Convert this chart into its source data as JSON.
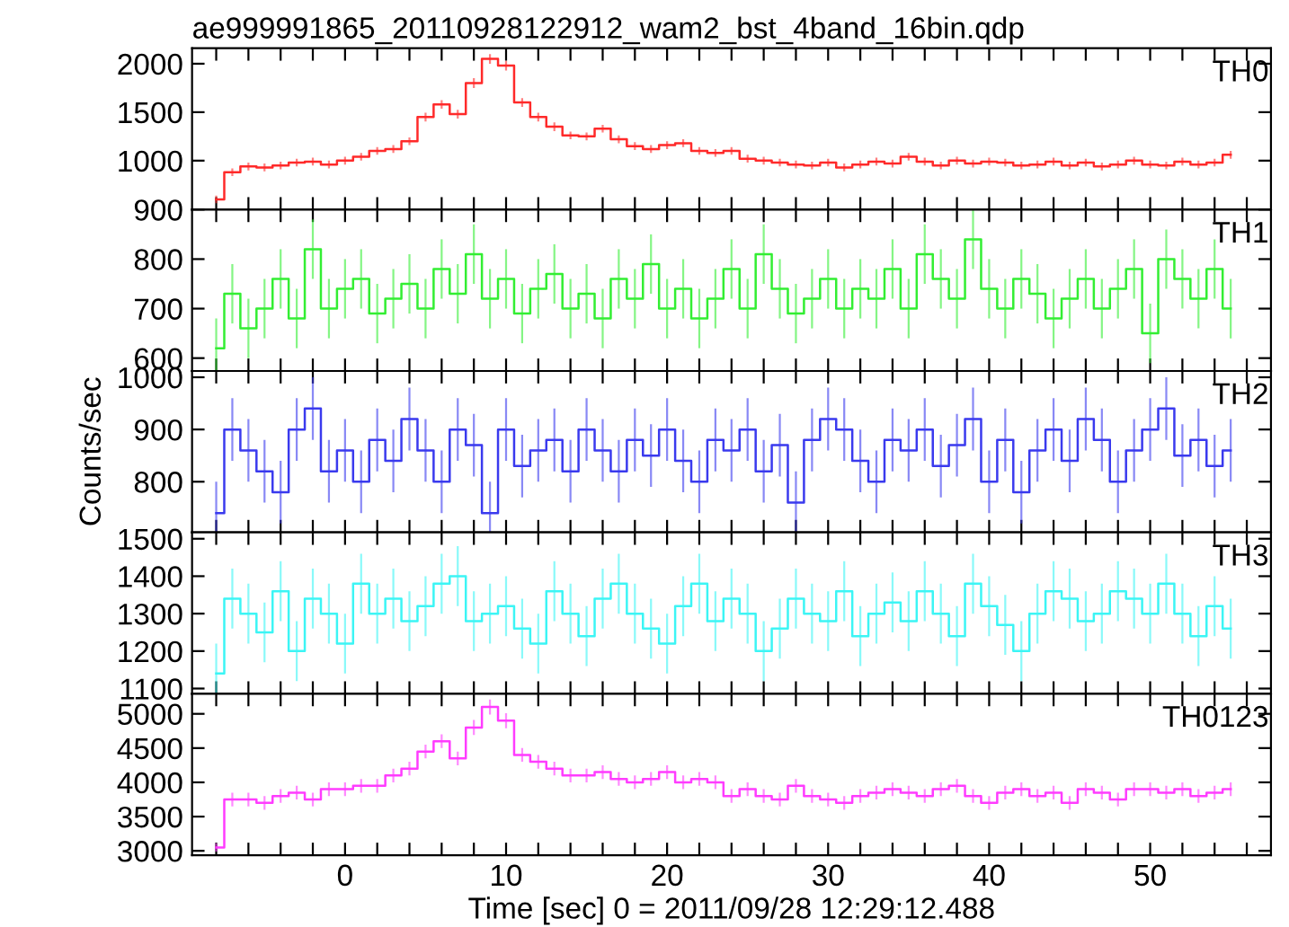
{
  "chart_data": [
    {
      "type": "step",
      "title": "ae999991865_20110928122912_wam2_bst_4band_16bin.qdp",
      "annotations": [
        "TH0"
      ],
      "tick_labels": "y",
      "x": [
        -8,
        -7,
        -6,
        -5,
        -4,
        -3,
        -2,
        -1,
        0,
        1,
        2,
        3,
        4,
        5,
        6,
        7,
        8,
        9,
        10,
        11,
        12,
        13,
        14,
        15,
        16,
        17,
        18,
        19,
        20,
        21,
        22,
        23,
        24,
        25,
        26,
        27,
        28,
        29,
        30,
        31,
        32,
        33,
        34,
        35,
        36,
        37,
        38,
        39,
        40,
        41,
        42,
        43,
        44,
        45,
        46,
        47,
        48,
        49,
        50,
        51,
        52,
        53,
        54,
        55
      ],
      "series": [
        {
          "color": "#ff2a2a",
          "values": [
            600,
            880,
            940,
            930,
            950,
            980,
            990,
            960,
            1000,
            1040,
            1100,
            1120,
            1200,
            1450,
            1580,
            1480,
            1800,
            2050,
            1980,
            1600,
            1450,
            1350,
            1260,
            1250,
            1330,
            1220,
            1150,
            1120,
            1160,
            1180,
            1100,
            1080,
            1100,
            1020,
            1000,
            980,
            960,
            950,
            980,
            930,
            960,
            990,
            970,
            1040,
            990,
            950,
            1000,
            970,
            990,
            980,
            950,
            960,
            990,
            950,
            980,
            940,
            960,
            1000,
            960,
            950,
            990,
            960,
            980,
            1060
          ],
          "errors": [
            40,
            40,
            40,
            40,
            40,
            40,
            40,
            40,
            40,
            40,
            40,
            40,
            40,
            45,
            45,
            45,
            50,
            50,
            50,
            45,
            45,
            45,
            40,
            40,
            40,
            40,
            40,
            40,
            40,
            40,
            40,
            40,
            40,
            40,
            40,
            40,
            40,
            40,
            40,
            40,
            40,
            40,
            40,
            40,
            40,
            40,
            40,
            40,
            40,
            40,
            40,
            40,
            40,
            40,
            40,
            40,
            40,
            40,
            40,
            40,
            40,
            40,
            40,
            40
          ]
        }
      ],
      "ylim": [
        495,
        2160
      ],
      "yticks": [
        1000,
        1500,
        2000
      ],
      "xlim": [
        -9.5,
        57.5
      ],
      "xticks": [
        {
          "value": -8,
          "label": null
        },
        {
          "value": -6,
          "label": null
        },
        {
          "value": -4,
          "label": null
        },
        {
          "value": -2,
          "label": null
        },
        0,
        {
          "value": 2,
          "label": null
        },
        {
          "value": 4,
          "label": null
        },
        {
          "value": 6,
          "label": null
        },
        {
          "value": 8,
          "label": null
        },
        10,
        {
          "value": 12,
          "label": null
        },
        {
          "value": 14,
          "label": null
        },
        {
          "value": 16,
          "label": null
        },
        {
          "value": 18,
          "label": null
        },
        20,
        {
          "value": 22,
          "label": null
        },
        {
          "value": 24,
          "label": null
        },
        {
          "value": 26,
          "label": null
        },
        {
          "value": 28,
          "label": null
        },
        30,
        {
          "value": 32,
          "label": null
        },
        {
          "value": 34,
          "label": null
        },
        {
          "value": 36,
          "label": null
        },
        {
          "value": 38,
          "label": null
        },
        40,
        {
          "value": 42,
          "label": null
        },
        {
          "value": 44,
          "label": null
        },
        {
          "value": 46,
          "label": null
        },
        {
          "value": 48,
          "label": null
        },
        50,
        {
          "value": 52,
          "label": null
        },
        {
          "value": 54,
          "label": null
        },
        {
          "value": 56,
          "label": null
        }
      ]
    },
    {
      "type": "step",
      "annotations": [
        "TH1"
      ],
      "tick_labels": "y",
      "x": [
        -8,
        -7,
        -6,
        -5,
        -4,
        -3,
        -2,
        -1,
        0,
        1,
        2,
        3,
        4,
        5,
        6,
        7,
        8,
        9,
        10,
        11,
        12,
        13,
        14,
        15,
        16,
        17,
        18,
        19,
        20,
        21,
        22,
        23,
        24,
        25,
        26,
        27,
        28,
        29,
        30,
        31,
        32,
        33,
        34,
        35,
        36,
        37,
        38,
        39,
        40,
        41,
        42,
        43,
        44,
        45,
        46,
        47,
        48,
        49,
        50,
        51,
        52,
        53,
        54,
        55
      ],
      "series": [
        {
          "color": "#33ee33",
          "values": [
            620,
            730,
            660,
            700,
            760,
            680,
            820,
            700,
            740,
            760,
            690,
            720,
            750,
            700,
            780,
            730,
            810,
            720,
            760,
            690,
            740,
            770,
            700,
            730,
            680,
            760,
            720,
            790,
            700,
            740,
            680,
            720,
            780,
            700,
            810,
            740,
            690,
            720,
            760,
            700,
            740,
            720,
            780,
            700,
            810,
            760,
            720,
            840,
            740,
            700,
            760,
            730,
            680,
            720,
            760,
            700,
            740,
            780,
            650,
            800,
            760,
            720,
            780,
            700
          ],
          "errors": [
            60,
            60,
            60,
            60,
            60,
            60,
            60,
            60,
            60,
            60,
            60,
            60,
            60,
            60,
            60,
            60,
            60,
            60,
            60,
            60,
            60,
            60,
            60,
            60,
            60,
            60,
            60,
            60,
            60,
            60,
            60,
            60,
            60,
            60,
            60,
            60,
            60,
            60,
            60,
            60,
            60,
            60,
            60,
            60,
            60,
            60,
            60,
            60,
            60,
            60,
            60,
            60,
            60,
            60,
            60,
            60,
            60,
            60,
            60,
            60,
            60,
            60,
            60,
            60
          ]
        }
      ],
      "ylim": [
        574,
        900
      ],
      "yticks": [
        600,
        700,
        800,
        900
      ],
      "xlim": [
        -9.5,
        57.5
      ],
      "xticks": [
        {
          "value": -8,
          "label": null
        },
        {
          "value": -6,
          "label": null
        },
        {
          "value": -4,
          "label": null
        },
        {
          "value": -2,
          "label": null
        },
        0,
        {
          "value": 2,
          "label": null
        },
        {
          "value": 4,
          "label": null
        },
        {
          "value": 6,
          "label": null
        },
        {
          "value": 8,
          "label": null
        },
        10,
        {
          "value": 12,
          "label": null
        },
        {
          "value": 14,
          "label": null
        },
        {
          "value": 16,
          "label": null
        },
        {
          "value": 18,
          "label": null
        },
        20,
        {
          "value": 22,
          "label": null
        },
        {
          "value": 24,
          "label": null
        },
        {
          "value": 26,
          "label": null
        },
        {
          "value": 28,
          "label": null
        },
        30,
        {
          "value": 32,
          "label": null
        },
        {
          "value": 34,
          "label": null
        },
        {
          "value": 36,
          "label": null
        },
        {
          "value": 38,
          "label": null
        },
        40,
        {
          "value": 42,
          "label": null
        },
        {
          "value": 44,
          "label": null
        },
        {
          "value": 46,
          "label": null
        },
        {
          "value": 48,
          "label": null
        },
        50,
        {
          "value": 52,
          "label": null
        },
        {
          "value": 54,
          "label": null
        },
        {
          "value": 56,
          "label": null
        }
      ]
    },
    {
      "type": "step",
      "annotations": [
        "TH2"
      ],
      "tick_labels": "y",
      "ylabel": "Counts/sec",
      "x": [
        -8,
        -7,
        -6,
        -5,
        -4,
        -3,
        -2,
        -1,
        0,
        1,
        2,
        3,
        4,
        5,
        6,
        7,
        8,
        9,
        10,
        11,
        12,
        13,
        14,
        15,
        16,
        17,
        18,
        19,
        20,
        21,
        22,
        23,
        24,
        25,
        26,
        27,
        28,
        29,
        30,
        31,
        32,
        33,
        34,
        35,
        36,
        37,
        38,
        39,
        40,
        41,
        42,
        43,
        44,
        45,
        46,
        47,
        48,
        49,
        50,
        51,
        52,
        53,
        54,
        55
      ],
      "series": [
        {
          "color": "#3a3aee",
          "values": [
            740,
            900,
            860,
            820,
            780,
            900,
            940,
            820,
            860,
            800,
            880,
            840,
            920,
            860,
            800,
            900,
            870,
            740,
            900,
            830,
            860,
            880,
            820,
            900,
            860,
            820,
            880,
            850,
            900,
            840,
            800,
            880,
            860,
            900,
            820,
            870,
            760,
            880,
            920,
            900,
            840,
            800,
            880,
            860,
            900,
            830,
            870,
            920,
            800,
            880,
            780,
            860,
            900,
            840,
            920,
            880,
            800,
            860,
            900,
            940,
            850,
            880,
            830,
            860
          ],
          "errors": [
            60,
            60,
            60,
            60,
            60,
            60,
            60,
            60,
            60,
            60,
            60,
            60,
            60,
            60,
            60,
            60,
            60,
            60,
            60,
            60,
            60,
            60,
            60,
            60,
            60,
            60,
            60,
            60,
            60,
            60,
            60,
            60,
            60,
            60,
            60,
            60,
            60,
            60,
            60,
            60,
            60,
            60,
            60,
            60,
            60,
            60,
            60,
            60,
            60,
            60,
            60,
            60,
            60,
            60,
            60,
            60,
            60,
            60,
            60,
            60,
            60,
            60,
            60,
            60
          ]
        }
      ],
      "ylim": [
        703,
        1012
      ],
      "yticks": [
        800,
        900,
        1000
      ],
      "xlim": [
        -9.5,
        57.5
      ],
      "xticks": [
        {
          "value": -8,
          "label": null
        },
        {
          "value": -6,
          "label": null
        },
        {
          "value": -4,
          "label": null
        },
        {
          "value": -2,
          "label": null
        },
        0,
        {
          "value": 2,
          "label": null
        },
        {
          "value": 4,
          "label": null
        },
        {
          "value": 6,
          "label": null
        },
        {
          "value": 8,
          "label": null
        },
        10,
        {
          "value": 12,
          "label": null
        },
        {
          "value": 14,
          "label": null
        },
        {
          "value": 16,
          "label": null
        },
        {
          "value": 18,
          "label": null
        },
        20,
        {
          "value": 22,
          "label": null
        },
        {
          "value": 24,
          "label": null
        },
        {
          "value": 26,
          "label": null
        },
        {
          "value": 28,
          "label": null
        },
        30,
        {
          "value": 32,
          "label": null
        },
        {
          "value": 34,
          "label": null
        },
        {
          "value": 36,
          "label": null
        },
        {
          "value": 38,
          "label": null
        },
        40,
        {
          "value": 42,
          "label": null
        },
        {
          "value": 44,
          "label": null
        },
        {
          "value": 46,
          "label": null
        },
        {
          "value": 48,
          "label": null
        },
        50,
        {
          "value": 52,
          "label": null
        },
        {
          "value": 54,
          "label": null
        },
        {
          "value": 56,
          "label": null
        }
      ]
    },
    {
      "type": "step",
      "annotations": [
        "TH3"
      ],
      "tick_labels": "y",
      "x": [
        -8,
        -7,
        -6,
        -5,
        -4,
        -3,
        -2,
        -1,
        0,
        1,
        2,
        3,
        4,
        5,
        6,
        7,
        8,
        9,
        10,
        11,
        12,
        13,
        14,
        15,
        16,
        17,
        18,
        19,
        20,
        21,
        22,
        23,
        24,
        25,
        26,
        27,
        28,
        29,
        30,
        31,
        32,
        33,
        34,
        35,
        36,
        37,
        38,
        39,
        40,
        41,
        42,
        43,
        44,
        45,
        46,
        47,
        48,
        49,
        50,
        51,
        52,
        53,
        54,
        55
      ],
      "series": [
        {
          "color": "#3cf5f5",
          "values": [
            1140,
            1340,
            1300,
            1250,
            1360,
            1200,
            1340,
            1300,
            1220,
            1380,
            1300,
            1340,
            1280,
            1320,
            1380,
            1400,
            1280,
            1300,
            1320,
            1260,
            1220,
            1360,
            1300,
            1240,
            1340,
            1380,
            1300,
            1260,
            1220,
            1320,
            1380,
            1280,
            1340,
            1300,
            1200,
            1260,
            1340,
            1300,
            1280,
            1360,
            1240,
            1300,
            1330,
            1280,
            1360,
            1300,
            1240,
            1380,
            1320,
            1270,
            1200,
            1300,
            1360,
            1340,
            1280,
            1300,
            1360,
            1340,
            1300,
            1380,
            1300,
            1240,
            1320,
            1260
          ],
          "errors": [
            80,
            80,
            80,
            80,
            80,
            80,
            80,
            80,
            80,
            80,
            80,
            80,
            80,
            80,
            80,
            80,
            80,
            80,
            80,
            80,
            80,
            80,
            80,
            80,
            80,
            80,
            80,
            80,
            80,
            80,
            80,
            80,
            80,
            80,
            80,
            80,
            80,
            80,
            80,
            80,
            80,
            80,
            80,
            80,
            80,
            80,
            80,
            80,
            80,
            80,
            80,
            80,
            80,
            80,
            80,
            80,
            80,
            80,
            80,
            80,
            80,
            80,
            80,
            80
          ]
        }
      ],
      "ylim": [
        1086,
        1517
      ],
      "yticks": [
        1100,
        1200,
        1300,
        1400,
        1500
      ],
      "xlim": [
        -9.5,
        57.5
      ],
      "xticks": [
        {
          "value": -8,
          "label": null
        },
        {
          "value": -6,
          "label": null
        },
        {
          "value": -4,
          "label": null
        },
        {
          "value": -2,
          "label": null
        },
        0,
        {
          "value": 2,
          "label": null
        },
        {
          "value": 4,
          "label": null
        },
        {
          "value": 6,
          "label": null
        },
        {
          "value": 8,
          "label": null
        },
        10,
        {
          "value": 12,
          "label": null
        },
        {
          "value": 14,
          "label": null
        },
        {
          "value": 16,
          "label": null
        },
        {
          "value": 18,
          "label": null
        },
        20,
        {
          "value": 22,
          "label": null
        },
        {
          "value": 24,
          "label": null
        },
        {
          "value": 26,
          "label": null
        },
        {
          "value": 28,
          "label": null
        },
        30,
        {
          "value": 32,
          "label": null
        },
        {
          "value": 34,
          "label": null
        },
        {
          "value": 36,
          "label": null
        },
        {
          "value": 38,
          "label": null
        },
        40,
        {
          "value": 42,
          "label": null
        },
        {
          "value": 44,
          "label": null
        },
        {
          "value": 46,
          "label": null
        },
        {
          "value": 48,
          "label": null
        },
        50,
        {
          "value": 52,
          "label": null
        },
        {
          "value": 54,
          "label": null
        },
        {
          "value": 56,
          "label": null
        }
      ]
    },
    {
      "type": "step",
      "annotations": [
        "TH0123"
      ],
      "xlabel": "Time [sec] 0 = 2011/09/28 12:29:12.488",
      "x": [
        -8,
        -7,
        -6,
        -5,
        -4,
        -3,
        -2,
        -1,
        0,
        1,
        2,
        3,
        4,
        5,
        6,
        7,
        8,
        9,
        10,
        11,
        12,
        13,
        14,
        15,
        16,
        17,
        18,
        19,
        20,
        21,
        22,
        23,
        24,
        25,
        26,
        27,
        28,
        29,
        30,
        31,
        32,
        33,
        34,
        35,
        36,
        37,
        38,
        39,
        40,
        41,
        42,
        43,
        44,
        45,
        46,
        47,
        48,
        49,
        50,
        51,
        52,
        53,
        54,
        55
      ],
      "series": [
        {
          "color": "#ff3cff",
          "values": [
            3050,
            3750,
            3750,
            3700,
            3800,
            3850,
            3750,
            3900,
            3900,
            3950,
            3950,
            4100,
            4200,
            4450,
            4600,
            4350,
            4800,
            5100,
            4900,
            4400,
            4300,
            4200,
            4100,
            4100,
            4150,
            4050,
            4000,
            4050,
            4150,
            4000,
            4050,
            4000,
            3800,
            3900,
            3800,
            3750,
            3950,
            3800,
            3750,
            3700,
            3800,
            3850,
            3900,
            3850,
            3800,
            3900,
            3950,
            3800,
            3700,
            3850,
            3900,
            3800,
            3850,
            3700,
            3900,
            3850,
            3750,
            3900,
            3900,
            3850,
            3900,
            3800,
            3850,
            3900
          ],
          "errors": [
            60,
            100,
            100,
            100,
            100,
            100,
            100,
            100,
            100,
            100,
            100,
            100,
            100,
            100,
            100,
            100,
            110,
            110,
            110,
            100,
            100,
            100,
            100,
            100,
            100,
            100,
            100,
            100,
            100,
            100,
            100,
            100,
            100,
            100,
            100,
            100,
            100,
            100,
            100,
            100,
            100,
            100,
            100,
            100,
            100,
            100,
            100,
            100,
            100,
            100,
            100,
            100,
            100,
            100,
            100,
            100,
            100,
            100,
            100,
            100,
            100,
            100,
            100,
            100
          ]
        }
      ],
      "ylim": [
        2937,
        5293
      ],
      "yticks": [
        3000,
        3500,
        4000,
        4500,
        5000
      ],
      "xlim": [
        -9.5,
        57.5
      ],
      "xticks": [
        {
          "value": -8,
          "label": null
        },
        {
          "value": -6,
          "label": null
        },
        {
          "value": -4,
          "label": null
        },
        {
          "value": -2,
          "label": null
        },
        0,
        {
          "value": 2,
          "label": null
        },
        {
          "value": 4,
          "label": null
        },
        {
          "value": 6,
          "label": null
        },
        {
          "value": 8,
          "label": null
        },
        10,
        {
          "value": 12,
          "label": null
        },
        {
          "value": 14,
          "label": null
        },
        {
          "value": 16,
          "label": null
        },
        {
          "value": 18,
          "label": null
        },
        20,
        {
          "value": 22,
          "label": null
        },
        {
          "value": 24,
          "label": null
        },
        {
          "value": 26,
          "label": null
        },
        {
          "value": 28,
          "label": null
        },
        30,
        {
          "value": 32,
          "label": null
        },
        {
          "value": 34,
          "label": null
        },
        {
          "value": 36,
          "label": null
        },
        {
          "value": 38,
          "label": null
        },
        40,
        {
          "value": 42,
          "label": null
        },
        {
          "value": 44,
          "label": null
        },
        {
          "value": 46,
          "label": null
        },
        {
          "value": 48,
          "label": null
        },
        50,
        {
          "value": 52,
          "label": null
        },
        {
          "value": 54,
          "label": null
        },
        {
          "value": 56,
          "label": null
        }
      ]
    }
  ]
}
